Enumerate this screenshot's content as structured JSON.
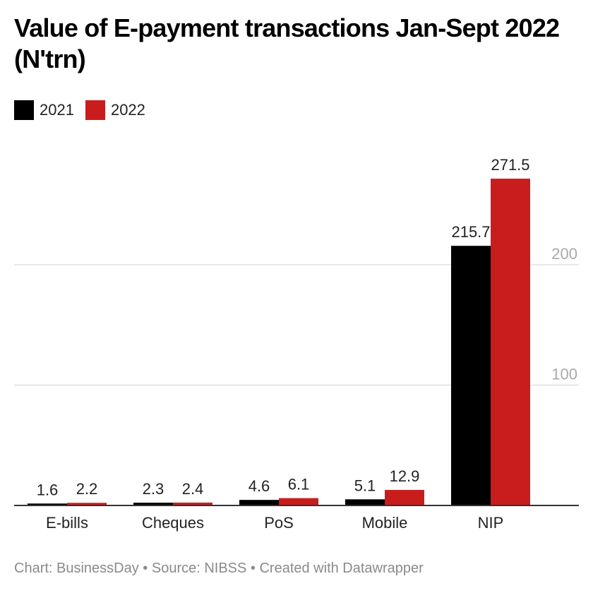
{
  "chart_data": {
    "type": "bar",
    "title": "Value of E-payment transactions Jan-Sept 2022 (N'trn)",
    "categories": [
      "E-bills",
      "Cheques",
      "PoS",
      "Mobile",
      "NIP"
    ],
    "series": [
      {
        "name": "2021",
        "color": "#000000",
        "values": [
          1.6,
          2.3,
          4.6,
          5.1,
          215.7
        ],
        "labels": [
          "1.6",
          "2.3",
          "4.6",
          "5.1",
          "215.7"
        ]
      },
      {
        "name": "2022",
        "color": "#c91d1d",
        "values": [
          2.2,
          2.4,
          6.1,
          12.9,
          271.5
        ],
        "labels": [
          "2.2",
          "2.4",
          "6.1",
          "12.9",
          "271.5"
        ]
      }
    ],
    "yticks": [
      100,
      200
    ],
    "ytick_labels": [
      "100",
      "200"
    ],
    "ylim": [
      0,
      280
    ],
    "xlabel": "",
    "ylabel": "",
    "grid": true,
    "legend": "top-left",
    "footer": "Chart: BusinessDay • Source: NIBSS • Created with Datawrapper"
  },
  "colors": {
    "gridline": "#e0e0e0",
    "tick_text": "#aaaaaa",
    "axis": "#333333"
  }
}
